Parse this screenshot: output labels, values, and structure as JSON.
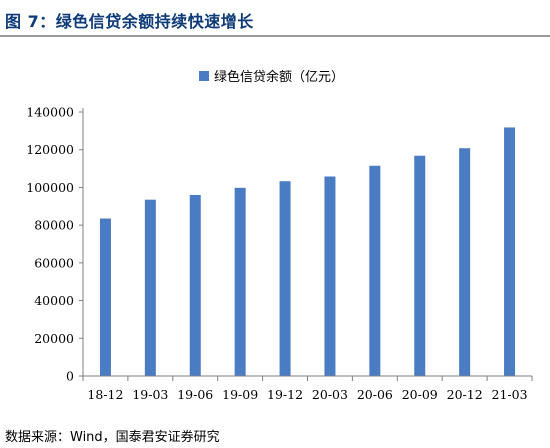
{
  "figure": {
    "title": "图 7：绿色信贷余额持续快速增长",
    "source_note": "数据来源：Wind，国泰君安证券研究"
  },
  "chart_data": {
    "type": "bar",
    "categories": [
      "18-12",
      "19-03",
      "19-06",
      "19-09",
      "19-12",
      "20-03",
      "20-06",
      "20-09",
      "20-12",
      "21-03"
    ],
    "series": [
      {
        "name": "绿色信贷余额（亿元）",
        "values": [
          83500,
          93500,
          96000,
          99800,
          103300,
          105800,
          111500,
          116800,
          120800,
          131800
        ],
        "color": "#4a7cc4"
      }
    ],
    "yticks": [
      "0",
      "20000",
      "40000",
      "60000",
      "80000",
      "100000",
      "120000",
      "140000"
    ],
    "ylim": [
      0,
      140000
    ],
    "legend_position": "top-center",
    "grid": false
  }
}
